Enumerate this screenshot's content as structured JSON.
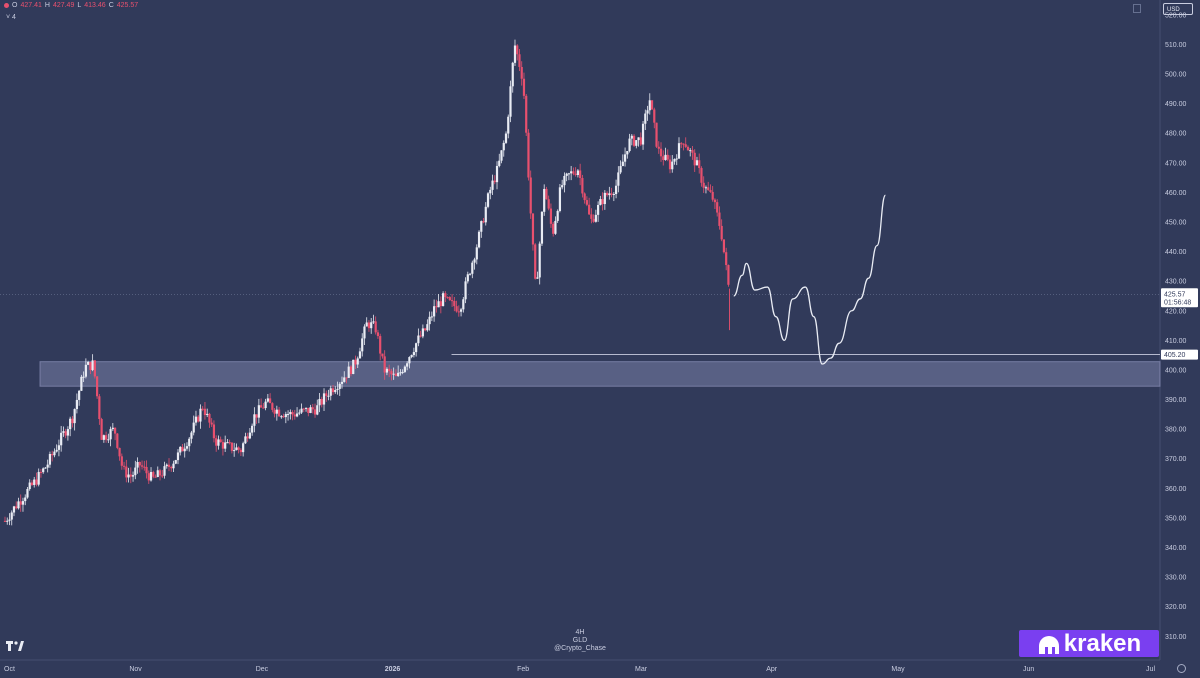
{
  "ohlc": {
    "o_label": "O",
    "o": "427.41",
    "h_label": "H",
    "h": "427.49",
    "l_label": "L",
    "l": "413.46",
    "c_label": "C",
    "c": "425.57"
  },
  "sub_label": "4",
  "currency": "USD",
  "watermark": {
    "interval": "4H",
    "symbol": "GLD",
    "author": "@Crypto_Chase"
  },
  "brand": {
    "name": "kraken"
  },
  "colors": {
    "background": "#313a5a",
    "up": "#e9ecf4",
    "down": "#e8506e",
    "zone": "#8a90b8",
    "projection": "#e9ecf4",
    "axis_text": "#c9cde0"
  },
  "chart_data": {
    "type": "candlestick",
    "symbol": "GLD",
    "interval": "4H",
    "currency": "USD",
    "title": "",
    "xlabel": "",
    "ylabel": "",
    "ylim": [
      302,
      525
    ],
    "y_ticks": [
      310,
      320,
      330,
      340,
      350,
      360,
      370,
      380,
      390,
      400,
      410,
      420,
      430,
      440,
      450,
      460,
      470,
      480,
      490,
      500,
      510,
      520
    ],
    "y_tick_labels": [
      "310.00",
      "320.00",
      "330.00",
      "340.00",
      "350.00",
      "360.00",
      "370.00",
      "380.00",
      "390.00",
      "400.00",
      "410.00",
      "420.00",
      "430.00",
      "440.00",
      "450.00",
      "460.00",
      "470.00",
      "480.00",
      "490.00",
      "500.00",
      "510.00",
      "520.00"
    ],
    "x_ticks": [
      "Oct",
      "Nov",
      "Dec",
      "2026",
      "Feb",
      "Mar",
      "Apr",
      "May",
      "Jun",
      "Jul"
    ],
    "xlim": [
      "2025-10-01",
      "2026-07-01"
    ],
    "price_path": [
      [
        "2025-10-01",
        349
      ],
      [
        "2025-10-04",
        355
      ],
      [
        "2025-10-08",
        362
      ],
      [
        "2025-10-11",
        368
      ],
      [
        "2025-10-14",
        376
      ],
      [
        "2025-10-17",
        384
      ],
      [
        "2025-10-20",
        401
      ],
      [
        "2025-10-22",
        402
      ],
      [
        "2025-10-24",
        377
      ],
      [
        "2025-10-27",
        380
      ],
      [
        "2025-10-29",
        366
      ],
      [
        "2025-10-31",
        364
      ],
      [
        "2025-11-02",
        368
      ],
      [
        "2025-11-05",
        363
      ],
      [
        "2025-11-08",
        366
      ],
      [
        "2025-11-11",
        371
      ],
      [
        "2025-11-14",
        378
      ],
      [
        "2025-11-17",
        388
      ],
      [
        "2025-11-20",
        376
      ],
      [
        "2025-11-23",
        374
      ],
      [
        "2025-11-26",
        373
      ],
      [
        "2025-11-29",
        384
      ],
      [
        "2025-12-02",
        389
      ],
      [
        "2025-12-05",
        386
      ],
      [
        "2025-12-08",
        385
      ],
      [
        "2025-12-11",
        386
      ],
      [
        "2025-12-14",
        387
      ],
      [
        "2025-12-17",
        393
      ],
      [
        "2025-12-20",
        397
      ],
      [
        "2025-12-23",
        402
      ],
      [
        "2025-12-26",
        416
      ],
      [
        "2025-12-28",
        414
      ],
      [
        "2025-12-30",
        400
      ],
      [
        "2026-01-02",
        397
      ],
      [
        "2026-01-05",
        405
      ],
      [
        "2026-01-07",
        410
      ],
      [
        "2026-01-09",
        414
      ],
      [
        "2026-01-11",
        421
      ],
      [
        "2026-01-13",
        424
      ],
      [
        "2026-01-15",
        422
      ],
      [
        "2026-01-17",
        421
      ],
      [
        "2026-01-19",
        432
      ],
      [
        "2026-01-21",
        442
      ],
      [
        "2026-01-24",
        460
      ],
      [
        "2026-01-26",
        468
      ],
      [
        "2026-01-28",
        480
      ],
      [
        "2026-01-30",
        510
      ],
      [
        "2026-02-01",
        498
      ],
      [
        "2026-02-03",
        448
      ],
      [
        "2026-02-04",
        426
      ],
      [
        "2026-02-06",
        462
      ],
      [
        "2026-02-08",
        446
      ],
      [
        "2026-02-10",
        462
      ],
      [
        "2026-02-12",
        466
      ],
      [
        "2026-02-14",
        468
      ],
      [
        "2026-02-17",
        450
      ],
      [
        "2026-02-20",
        458
      ],
      [
        "2026-02-23",
        462
      ],
      [
        "2026-02-26",
        477
      ],
      [
        "2026-03-01",
        478
      ],
      [
        "2026-03-03",
        492
      ],
      [
        "2026-03-05",
        474
      ],
      [
        "2026-03-08",
        469
      ],
      [
        "2026-03-11",
        478
      ],
      [
        "2026-03-14",
        470
      ],
      [
        "2026-03-16",
        462
      ],
      [
        "2026-03-18",
        458
      ],
      [
        "2026-03-20",
        447
      ],
      [
        "2026-03-22",
        425.57
      ]
    ],
    "projection": [
      [
        "2026-03-23",
        425
      ],
      [
        "2026-03-25",
        432
      ],
      [
        "2026-03-26",
        436
      ],
      [
        "2026-03-28",
        427
      ],
      [
        "2026-03-31",
        428
      ],
      [
        "2026-04-02",
        418
      ],
      [
        "2026-04-04",
        410
      ],
      [
        "2026-04-06",
        424
      ],
      [
        "2026-04-09",
        428
      ],
      [
        "2026-04-11",
        418
      ],
      [
        "2026-04-13",
        402
      ],
      [
        "2026-04-15",
        404
      ],
      [
        "2026-04-17",
        409
      ],
      [
        "2026-04-20",
        420
      ],
      [
        "2026-04-22",
        424
      ],
      [
        "2026-04-24",
        431
      ],
      [
        "2026-04-26",
        442
      ],
      [
        "2026-04-28",
        459
      ]
    ],
    "support_zone": {
      "low": 394.5,
      "high": 402.8
    },
    "price_line": {
      "value": 405.2,
      "label": "405.20",
      "from": "2026-01-15"
    },
    "last_price": {
      "value": 425.57,
      "label": "425.57",
      "countdown": "01:56:48"
    }
  }
}
